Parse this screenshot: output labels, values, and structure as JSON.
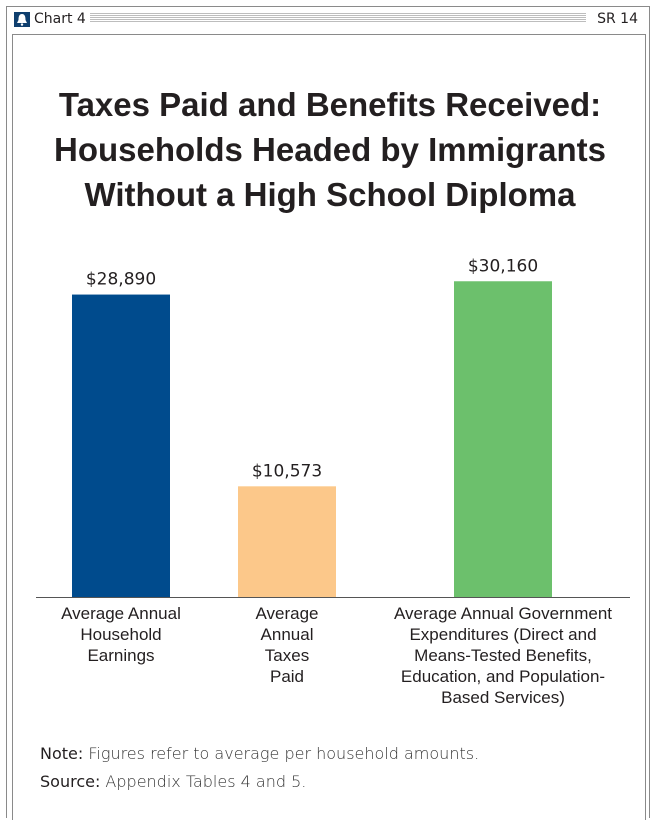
{
  "header": {
    "chart_label": "Chart 4",
    "report_id": "SR 14"
  },
  "colors": {
    "earnings": "#004b8d",
    "taxes": "#fcc88a",
    "expenditures": "#6cc06c",
    "axis": "#555555"
  },
  "chart_data": {
    "type": "bar",
    "title_lines": [
      "Taxes Paid and Benefits Received:",
      "Households Headed by Immigrants",
      "Without a High School Diploma"
    ],
    "categories": [
      [
        "Average Annual",
        "Household",
        "Earnings"
      ],
      [
        "Average",
        "Annual",
        "Taxes",
        "Paid"
      ],
      [
        "Average Annual Government",
        "Expenditures (Direct and",
        "Means-Tested Benefits,",
        "Education, and Population-",
        "Based Services)"
      ]
    ],
    "values": [
      28890,
      10573,
      30160
    ],
    "value_labels": [
      "$28,890",
      "$10,573",
      "$30,160"
    ],
    "ylim": [
      0,
      32000
    ],
    "grid": false,
    "legend": "none"
  },
  "notes": {
    "note_label": "Note:",
    "note_text": " Figures refer to average per household amounts.",
    "source_label": "Source:",
    "source_text": " Appendix Tables 4 and 5."
  }
}
